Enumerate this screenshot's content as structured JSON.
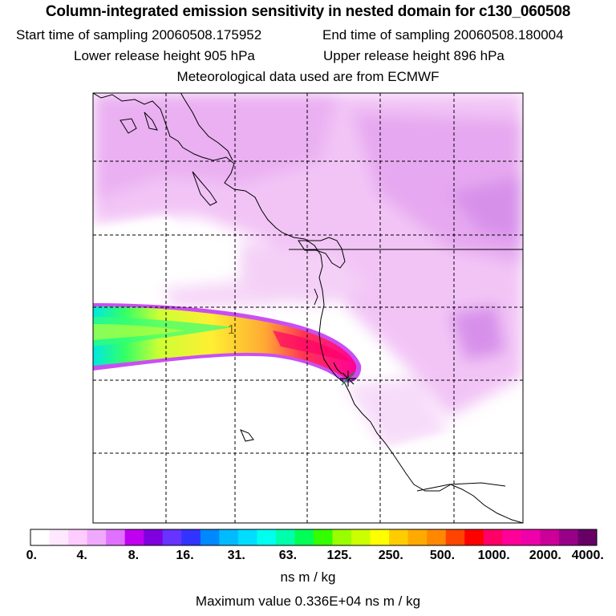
{
  "header": {
    "title": "Column-integrated emission sensitivity in nested domain for c130_060508",
    "start_time": "Start time of sampling 20060508.175952",
    "end_time": "End time of sampling 20060508.180004",
    "lower_release": "Lower release height  905 hPa",
    "upper_release": "Upper release height  896 hPa",
    "met_data": "Meteorological data used are from ECMWF"
  },
  "map": {
    "plume_label": "1",
    "release_marker": "release-point-star",
    "plume_colors": [
      "#00e8e0",
      "#33ff66",
      "#ffff33",
      "#ffaa33",
      "#ff3366",
      "#ff00a0"
    ]
  },
  "colorbar": {
    "tick_labels": [
      "0.",
      "4.",
      "8.",
      "16.",
      "31.",
      "63.",
      "125.",
      "250.",
      "500.",
      "1000.",
      "2000.",
      "4000."
    ],
    "colors": [
      "#ffffff",
      "#ffe8ff",
      "#ffccff",
      "#f0a8ff",
      "#e070ff",
      "#c000f0",
      "#8000e0",
      "#6633ff",
      "#3333ff",
      "#0088ff",
      "#00bbff",
      "#00ddff",
      "#00ffee",
      "#00ffaa",
      "#00ff55",
      "#33ff00",
      "#99ff00",
      "#ccff00",
      "#ffff00",
      "#ffcc00",
      "#ffaa00",
      "#ff8800",
      "#ff4400",
      "#ff0000",
      "#ff0066",
      "#ff0099",
      "#ee00aa",
      "#cc0099",
      "#990088",
      "#660066"
    ],
    "units": "ns m / kg",
    "max_value": "Maximum value  0.336E+04 ns m / kg"
  }
}
